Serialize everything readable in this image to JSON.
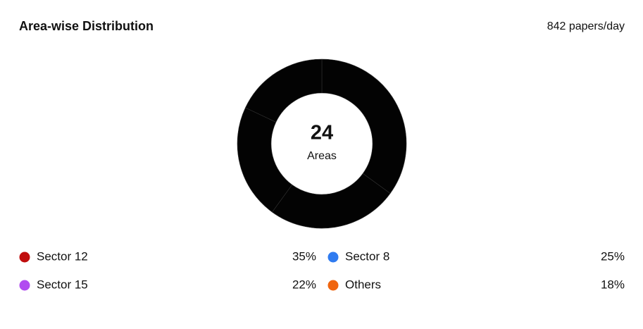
{
  "chart_data": {
    "type": "donut",
    "title": "Area-wise Distribution",
    "subtitle": "842 papers/day",
    "center_value": 24,
    "center_label": "Areas",
    "slice_color": "#030303",
    "series": [
      {
        "name": "Sector 12",
        "color": "#c00d0d",
        "values": [
          35
        ],
        "value_labels": [
          "35%"
        ]
      },
      {
        "name": "Sector 8",
        "color": "#2f7bf0",
        "values": [
          25
        ],
        "value_labels": [
          "25%"
        ]
      },
      {
        "name": "Sector 15",
        "color": "#b14cf0",
        "values": [
          22
        ],
        "value_labels": [
          "22%"
        ]
      },
      {
        "name": "Others",
        "color": "#f0650f",
        "values": [
          18
        ],
        "value_labels": [
          "18%"
        ]
      }
    ]
  }
}
